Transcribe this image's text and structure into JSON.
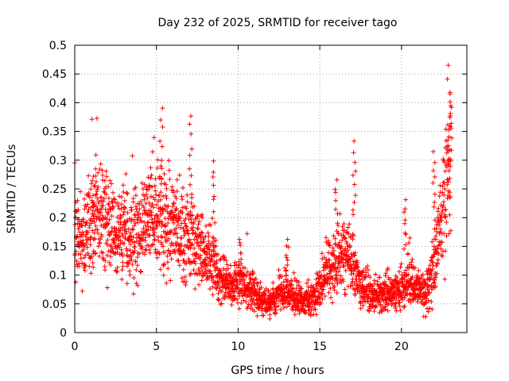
{
  "chart_data": {
    "type": "scatter",
    "title": "Day 232 of 2025, SRMTID for receiver tago",
    "xlabel": "GPS time / hours",
    "ylabel": "SRMTID / TECUs",
    "xlim": [
      0,
      24
    ],
    "ylim": [
      0,
      0.5
    ],
    "x_ticks": [
      0,
      5,
      10,
      15,
      20
    ],
    "x_tick_labels": [
      "0",
      "5",
      "10",
      "15",
      "20"
    ],
    "y_ticks": [
      0,
      0.05,
      0.1,
      0.15,
      0.2,
      0.25,
      0.3,
      0.35,
      0.4,
      0.45,
      0.5
    ],
    "y_tick_labels": [
      "0",
      "0.05",
      "0.1",
      "0.15",
      "0.2",
      "0.25",
      "0.3",
      "0.35",
      "0.4",
      "0.45",
      "0.5"
    ],
    "grid": true,
    "marker": "+",
    "color": "#ff0000",
    "series": [
      {
        "name": "SRMTID",
        "trend": [
          [
            0.0,
            0.19
          ],
          [
            0.5,
            0.15
          ],
          [
            1.0,
            0.2
          ],
          [
            1.5,
            0.21
          ],
          [
            2.0,
            0.19
          ],
          [
            2.5,
            0.17
          ],
          [
            3.0,
            0.17
          ],
          [
            3.5,
            0.16
          ],
          [
            4.0,
            0.17
          ],
          [
            4.5,
            0.2
          ],
          [
            5.0,
            0.21
          ],
          [
            5.5,
            0.19
          ],
          [
            6.0,
            0.18
          ],
          [
            6.5,
            0.17
          ],
          [
            7.0,
            0.16
          ],
          [
            7.5,
            0.15
          ],
          [
            8.0,
            0.13
          ],
          [
            8.5,
            0.12
          ],
          [
            9.0,
            0.09
          ],
          [
            9.5,
            0.08
          ],
          [
            10.0,
            0.09
          ],
          [
            10.5,
            0.08
          ],
          [
            11.0,
            0.07
          ],
          [
            11.5,
            0.055
          ],
          [
            12.0,
            0.05
          ],
          [
            12.5,
            0.07
          ],
          [
            13.0,
            0.07
          ],
          [
            13.5,
            0.06
          ],
          [
            14.0,
            0.055
          ],
          [
            14.5,
            0.06
          ],
          [
            15.0,
            0.08
          ],
          [
            15.5,
            0.1
          ],
          [
            16.0,
            0.13
          ],
          [
            16.5,
            0.14
          ],
          [
            17.0,
            0.12
          ],
          [
            17.5,
            0.08
          ],
          [
            18.0,
            0.07
          ],
          [
            18.5,
            0.065
          ],
          [
            19.0,
            0.065
          ],
          [
            19.5,
            0.07
          ],
          [
            20.0,
            0.07
          ],
          [
            20.5,
            0.09
          ],
          [
            21.0,
            0.08
          ],
          [
            21.5,
            0.06
          ],
          [
            22.0,
            0.12
          ],
          [
            22.5,
            0.2
          ],
          [
            23.0,
            0.3
          ]
        ],
        "spikes": [
          [
            5.3,
            0.395
          ],
          [
            7.1,
            0.38
          ],
          [
            8.5,
            0.3
          ],
          [
            17.1,
            0.335
          ],
          [
            22.0,
            0.32
          ],
          [
            22.9,
            0.47
          ],
          [
            23.0,
            0.42
          ],
          [
            16.0,
            0.27
          ],
          [
            13.0,
            0.165
          ],
          [
            10.1,
            0.17
          ],
          [
            20.2,
            0.235
          ],
          [
            1.2,
            0.285
          ]
        ]
      }
    ]
  }
}
